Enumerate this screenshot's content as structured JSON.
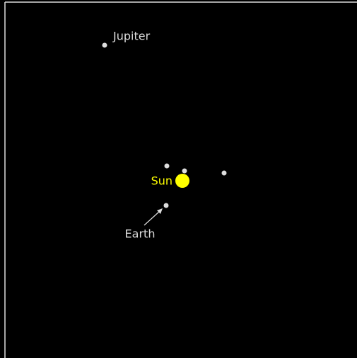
{
  "bodies": [
    {
      "label": "Jupiter"
    },
    {
      "label": "Sun"
    },
    {
      "label": "Earth"
    }
  ]
}
